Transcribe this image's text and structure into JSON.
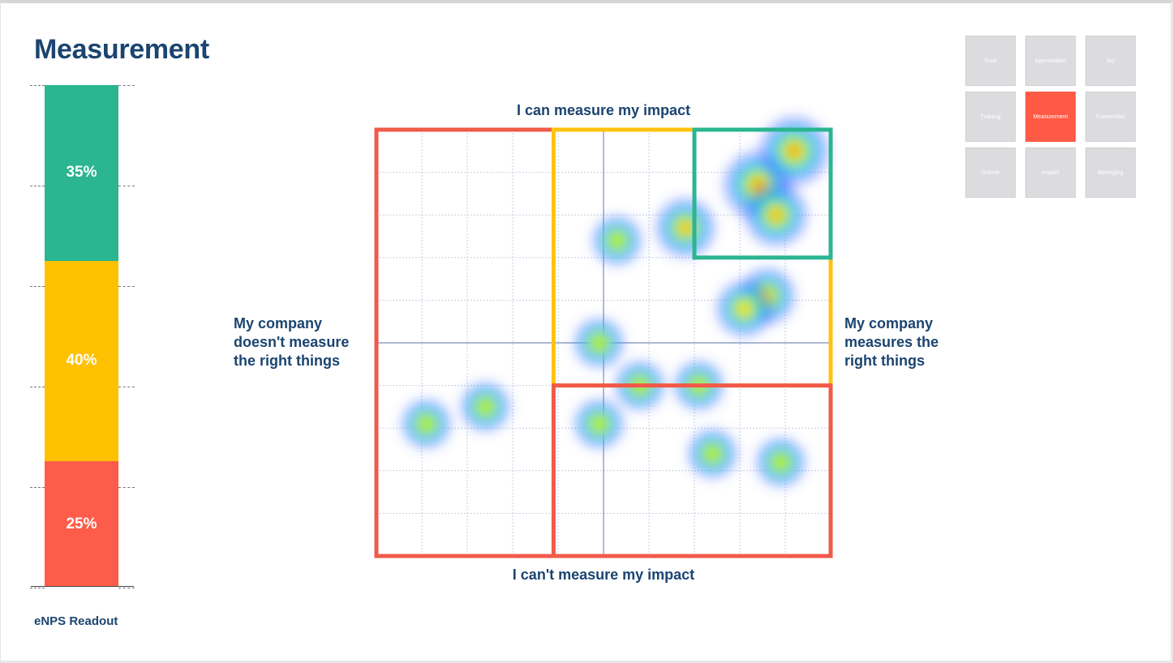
{
  "page": {
    "title": "Measurement"
  },
  "enps": {
    "caption": "eNPS Readout",
    "segments": [
      {
        "label": "35%",
        "value": 35,
        "color": "#2bb591"
      },
      {
        "label": "40%",
        "value": 40,
        "color": "#fec100"
      },
      {
        "label": "25%",
        "value": 25,
        "color": "#fe5c4a"
      }
    ]
  },
  "quadrant": {
    "top_label": "I can measure my impact",
    "bottom_label": "I can't measure my impact",
    "left_label": "My company doesn't measure the right things",
    "right_label": "My company measures the right things"
  },
  "nav_tiles": [
    {
      "label": "Trust",
      "active": false
    },
    {
      "label": "Appreciation",
      "active": false
    },
    {
      "label": "Joy",
      "active": false
    },
    {
      "label": "Training",
      "active": false
    },
    {
      "label": "Measurement",
      "active": true
    },
    {
      "label": "Connection",
      "active": false
    },
    {
      "label": "Growth",
      "active": false
    },
    {
      "label": "Impact",
      "active": false
    },
    {
      "label": "Belonging",
      "active": false
    }
  ],
  "chart_data": {
    "type": "heatmap",
    "title": "",
    "xlabel_left": "My company doesn't measure the right things",
    "xlabel_right": "My company measures the right things",
    "ylabel_top": "I can measure my impact",
    "ylabel_bottom": "I can't measure my impact",
    "xlim": [
      -5,
      5
    ],
    "ylim": [
      -5,
      5
    ],
    "grid": true,
    "zones": [
      {
        "name": "red",
        "color": "#f15a4a",
        "x": [
          -5,
          5
        ],
        "y": [
          -5,
          5
        ]
      },
      {
        "name": "yellow",
        "color": "#ffc20e",
        "x": [
          -1.1,
          5
        ],
        "y": [
          -1,
          5
        ]
      },
      {
        "name": "green",
        "color": "#2bb591",
        "x": [
          2,
          5
        ],
        "y": [
          2,
          5
        ]
      },
      {
        "name": "red-lower-right",
        "color": "#f15a4a",
        "x": [
          -1.1,
          5
        ],
        "y": [
          -5,
          -1
        ]
      }
    ],
    "points": [
      {
        "x": 0.3,
        "y": 2.4,
        "weight": 1
      },
      {
        "x": 1.8,
        "y": 2.7,
        "weight": 2.5
      },
      {
        "x": 3.4,
        "y": 3.7,
        "weight": 4
      },
      {
        "x": 4.2,
        "y": 4.5,
        "weight": 4
      },
      {
        "x": 3.8,
        "y": 3.0,
        "weight": 3
      },
      {
        "x": 3.6,
        "y": 1.1,
        "weight": 2
      },
      {
        "x": 3.1,
        "y": 0.8,
        "weight": 2
      },
      {
        "x": -0.1,
        "y": 0.0,
        "weight": 1
      },
      {
        "x": 0.8,
        "y": -1.0,
        "weight": 1
      },
      {
        "x": 2.1,
        "y": -1.0,
        "weight": 1
      },
      {
        "x": -2.6,
        "y": -1.5,
        "weight": 1
      },
      {
        "x": -3.9,
        "y": -1.9,
        "weight": 1
      },
      {
        "x": -0.1,
        "y": -1.9,
        "weight": 1
      },
      {
        "x": 2.4,
        "y": -2.6,
        "weight": 1
      },
      {
        "x": 3.9,
        "y": -2.8,
        "weight": 1
      }
    ]
  }
}
